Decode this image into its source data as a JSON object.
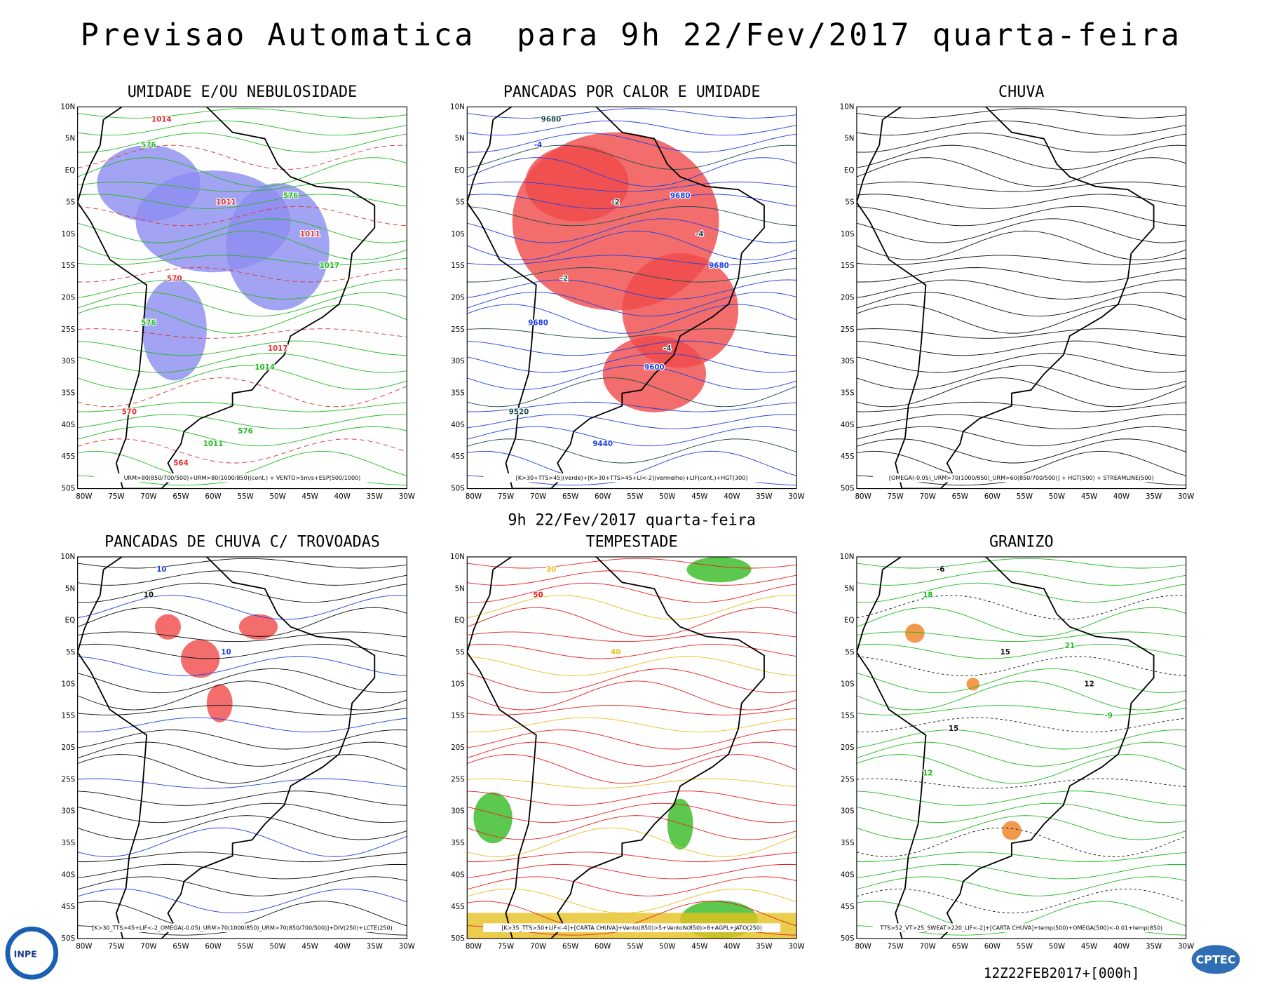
{
  "title": "Previsao Automatica  para 9h 22/Fev/2017 quarta-feira",
  "subtitle": "9h 22/Fev/2017 quarta-feira",
  "lat_labels": [
    "10N",
    "5N",
    "EQ",
    "5S",
    "10S",
    "15S",
    "20S",
    "25S",
    "30S",
    "35S",
    "40S",
    "45S",
    "50S"
  ],
  "lon_labels": [
    "80W",
    "75W",
    "70W",
    "65W",
    "60W",
    "55W",
    "50W",
    "45W",
    "40W",
    "35W",
    "30W"
  ],
  "panels": [
    {
      "title": "UMIDADE E/OU NEBULOSIDADE",
      "caption": "URM>80(850/700/500)+URM>80(1000/850)(cont.) + VENTO>5m/s+ESP(500/1000)",
      "labels": [
        "1014",
        "576",
        "1011",
        "576",
        "1011",
        "1017",
        "570",
        "576",
        "1017",
        "1014",
        "570",
        "1011",
        "564",
        "576"
      ]
    },
    {
      "title": "PANCADAS POR CALOR E UMIDADE",
      "caption": "[K>30+TTS>45](verde)+[K>30+TTS>45+LI<-2](vermelho)+LIF(cont.)+HGT(300)",
      "labels": [
        "9680",
        "-4",
        "-2",
        "9680",
        "-4",
        "9680",
        "-2",
        "9680",
        "-4",
        "9600",
        "9520",
        "9440"
      ]
    },
    {
      "title": "CHUVA",
      "caption": "[OMEGA(-0.05)_URM>70(1000/850)_URM>60(850/700/500)] + HGT(500) + STREAMLINE(500)",
      "labels": []
    },
    {
      "title": "PANCADAS DE CHUVA C/ TROVOADAS",
      "caption": "[K>30_TTS>45+LIF<-2_OMEGA(-0.05)_URM>70(1000/850)_URM>70(850/700/500)]+DIV(250)+LCTE(250)",
      "labels": [
        "10",
        "10",
        "10"
      ]
    },
    {
      "title": "TEMPESTADE",
      "caption": "[K>35_TTS>50+LIF<-4]+[CARTA CHUVA]+Vento(850)>5+VentoN(850)>8+AGPL+JATO(250)",
      "labels": [
        "30",
        "50",
        "40"
      ]
    },
    {
      "title": "GRANIZO",
      "caption": "TTS>52_VT>25_SWEAT>220_LIF<-2]+[CARTA CHUVA]+temp(500)+OMEGA(500)<-0.01+temp(850)",
      "labels": [
        "-6",
        "18",
        "15",
        "21",
        "12",
        "-9",
        "15",
        "12"
      ]
    }
  ],
  "footer": "12Z22FEB2017+[000h]",
  "logos": {
    "left": "INPE",
    "right": "CPTEC"
  }
}
